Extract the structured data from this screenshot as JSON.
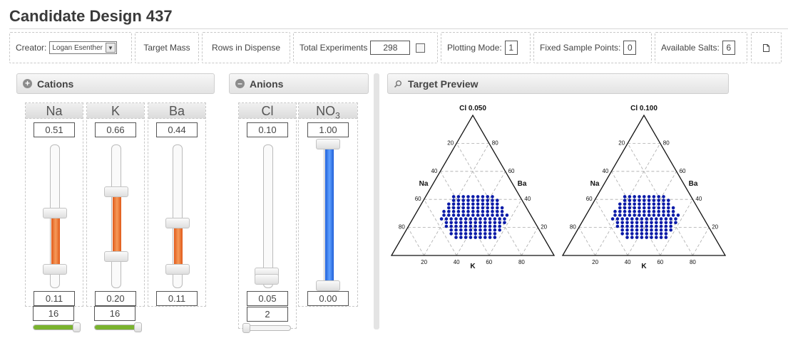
{
  "title": "Candidate Design 437",
  "toolbar": {
    "creator_label": "Creator:",
    "creator_value": "Logan Esenther",
    "target_mass": "Target Mass",
    "rows_in_dispense": "Rows in Dispense",
    "total_experiments_label": "Total Experiments",
    "total_experiments_value": "298",
    "plotting_mode_label": "Plotting Mode:",
    "plotting_mode_value": "1",
    "fixed_sample_points_label": "Fixed Sample Points:",
    "fixed_sample_points_value": "0",
    "available_salts_label": "Available Salts:",
    "available_salts_value": "6"
  },
  "cations": {
    "header": "Cations",
    "columns": [
      {
        "name": "Na",
        "max": "0.51",
        "min": "0.11",
        "count": "16",
        "count_fraction": 1.0
      },
      {
        "name": "K",
        "max": "0.66",
        "min": "0.20",
        "count": "16",
        "count_fraction": 1.0
      },
      {
        "name": "Ba",
        "max": "0.44",
        "min": "0.11"
      }
    ]
  },
  "anions": {
    "header": "Anions",
    "columns": [
      {
        "name": "Cl",
        "max": "0.10",
        "min": "0.05",
        "count": "2",
        "count_fraction": 0.0
      },
      {
        "name": "NO",
        "subscript": "3",
        "max": "1.00",
        "min": "0.00"
      }
    ]
  },
  "preview": {
    "header": "Target Preview",
    "plots": [
      {
        "title": "Cl 0.050",
        "left_label": "Na",
        "right_label": "Ba",
        "bottom_label": "K"
      },
      {
        "title": "Cl 0.100",
        "left_label": "Na",
        "right_label": "Ba",
        "bottom_label": "K"
      }
    ],
    "ticks": [
      "20",
      "40",
      "60",
      "80"
    ],
    "point_color": "#0a1aa8"
  },
  "colors": {
    "cation_fill": "#ef6a26",
    "anion_fill": "#3b7df0",
    "count_fill": "#7ab32e"
  }
}
